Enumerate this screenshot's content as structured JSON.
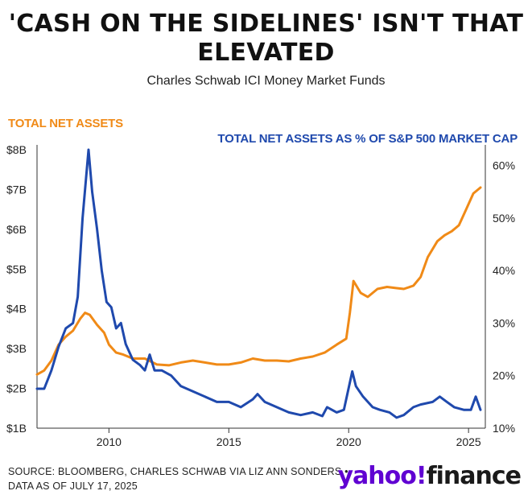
{
  "header": {
    "title_line1": "'CASH ON THE SIDELINES' ISN'T THAT",
    "title_line2": "ELEVATED",
    "subtitle": "Charles Schwab ICI Money Market Funds"
  },
  "footer": {
    "source_line1": "SOURCE: BLOOMBERG, CHARLES SCHWAB VIA LIZ ANN SONDERS •",
    "source_line2": "DATA AS OF JULY 17, 2025",
    "logo_part1": "yahoo!",
    "logo_part2": "finance"
  },
  "colors": {
    "orange": "#f08a17",
    "blue": "#1f49ad",
    "logo_purple": "#6001d2"
  },
  "chart_data": {
    "type": "line",
    "title": "'CASH ON THE SIDELINES' ISN'T THAT ELEVATED",
    "subtitle": "Charles Schwab ICI Money Market Funds",
    "x_ticks": [
      "2010",
      "2015",
      "2020",
      "2025"
    ],
    "xlim": [
      2007.0,
      2025.7
    ],
    "left_axis": {
      "label": "TOTAL NET ASSETS",
      "ticks": [
        "$1B",
        "$2B",
        "$3B",
        "$4B",
        "$5B",
        "$6B",
        "$7B",
        "$8B"
      ],
      "ylim": [
        1,
        8
      ]
    },
    "right_axis": {
      "label": "TOTAL NET ASSETS AS % OF S&P 500 MARKET CAP",
      "ticks": [
        "10%",
        "20%",
        "30%",
        "40%",
        "50%",
        "60%"
      ],
      "ylim": [
        10,
        63
      ]
    },
    "grid": false,
    "series": [
      {
        "name": "TOTAL NET ASSETS",
        "axis": "left",
        "color": "#f08a17",
        "points": [
          [
            2007.0,
            2.35
          ],
          [
            2007.3,
            2.45
          ],
          [
            2007.6,
            2.7
          ],
          [
            2007.9,
            3.1
          ],
          [
            2008.2,
            3.3
          ],
          [
            2008.5,
            3.45
          ],
          [
            2008.8,
            3.75
          ],
          [
            2009.0,
            3.9
          ],
          [
            2009.2,
            3.85
          ],
          [
            2009.5,
            3.6
          ],
          [
            2009.8,
            3.4
          ],
          [
            2010.0,
            3.1
          ],
          [
            2010.3,
            2.9
          ],
          [
            2010.6,
            2.85
          ],
          [
            2011.0,
            2.75
          ],
          [
            2011.5,
            2.75
          ],
          [
            2012.0,
            2.6
          ],
          [
            2012.5,
            2.58
          ],
          [
            2013.0,
            2.65
          ],
          [
            2013.5,
            2.7
          ],
          [
            2014.0,
            2.65
          ],
          [
            2014.5,
            2.6
          ],
          [
            2015.0,
            2.6
          ],
          [
            2015.5,
            2.65
          ],
          [
            2016.0,
            2.75
          ],
          [
            2016.5,
            2.7
          ],
          [
            2017.0,
            2.7
          ],
          [
            2017.5,
            2.68
          ],
          [
            2018.0,
            2.75
          ],
          [
            2018.5,
            2.8
          ],
          [
            2019.0,
            2.9
          ],
          [
            2019.5,
            3.1
          ],
          [
            2019.9,
            3.25
          ],
          [
            2020.05,
            3.9
          ],
          [
            2020.2,
            4.7
          ],
          [
            2020.5,
            4.4
          ],
          [
            2020.8,
            4.3
          ],
          [
            2021.2,
            4.5
          ],
          [
            2021.6,
            4.55
          ],
          [
            2022.0,
            4.52
          ],
          [
            2022.3,
            4.5
          ],
          [
            2022.7,
            4.58
          ],
          [
            2023.0,
            4.8
          ],
          [
            2023.3,
            5.3
          ],
          [
            2023.7,
            5.7
          ],
          [
            2024.0,
            5.85
          ],
          [
            2024.3,
            5.95
          ],
          [
            2024.6,
            6.1
          ],
          [
            2024.9,
            6.5
          ],
          [
            2025.2,
            6.9
          ],
          [
            2025.5,
            7.05
          ]
        ]
      },
      {
        "name": "TOTAL NET ASSETS AS % OF S&P 500 MARKET CAP",
        "axis": "right",
        "color": "#1f49ad",
        "points": [
          [
            2007.0,
            17.5
          ],
          [
            2007.3,
            17.5
          ],
          [
            2007.6,
            21
          ],
          [
            2007.9,
            25.5
          ],
          [
            2008.2,
            29
          ],
          [
            2008.5,
            30
          ],
          [
            2008.7,
            35
          ],
          [
            2008.9,
            50
          ],
          [
            2009.15,
            63
          ],
          [
            2009.3,
            55
          ],
          [
            2009.5,
            48
          ],
          [
            2009.7,
            40
          ],
          [
            2009.9,
            34
          ],
          [
            2010.1,
            33
          ],
          [
            2010.3,
            29
          ],
          [
            2010.5,
            30
          ],
          [
            2010.7,
            26
          ],
          [
            2011.0,
            23
          ],
          [
            2011.3,
            22
          ],
          [
            2011.5,
            21
          ],
          [
            2011.7,
            24
          ],
          [
            2011.9,
            21
          ],
          [
            2012.2,
            21
          ],
          [
            2012.6,
            20
          ],
          [
            2013.0,
            18
          ],
          [
            2013.5,
            17
          ],
          [
            2014.0,
            16
          ],
          [
            2014.5,
            15
          ],
          [
            2015.0,
            15
          ],
          [
            2015.5,
            14
          ],
          [
            2016.0,
            15.5
          ],
          [
            2016.2,
            16.5
          ],
          [
            2016.5,
            15
          ],
          [
            2017.0,
            14
          ],
          [
            2017.5,
            13
          ],
          [
            2018.0,
            12.5
          ],
          [
            2018.5,
            13
          ],
          [
            2018.9,
            12.3
          ],
          [
            2019.1,
            14
          ],
          [
            2019.5,
            13
          ],
          [
            2019.8,
            13.5
          ],
          [
            2020.15,
            20.8
          ],
          [
            2020.3,
            18
          ],
          [
            2020.6,
            16
          ],
          [
            2021.0,
            14
          ],
          [
            2021.3,
            13.5
          ],
          [
            2021.7,
            13
          ],
          [
            2022.0,
            12
          ],
          [
            2022.3,
            12.5
          ],
          [
            2022.7,
            14
          ],
          [
            2023.0,
            14.5
          ],
          [
            2023.5,
            15
          ],
          [
            2023.8,
            16
          ],
          [
            2024.1,
            15
          ],
          [
            2024.4,
            14
          ],
          [
            2024.8,
            13.5
          ],
          [
            2025.1,
            13.5
          ],
          [
            2025.3,
            16
          ],
          [
            2025.5,
            13.5
          ]
        ]
      }
    ]
  }
}
